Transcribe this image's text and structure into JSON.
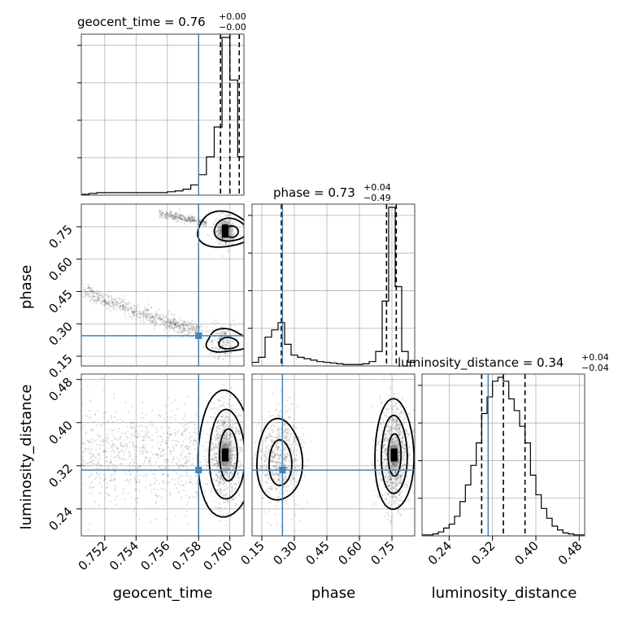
{
  "chart_data": {
    "type": "corner",
    "parameters": [
      {
        "name": "geocent_time",
        "label": "geocent_time",
        "range": [
          0.7505,
          0.7609
        ],
        "ticks": [
          "0.752",
          "0.754",
          "0.756",
          "0.758",
          "0.760"
        ],
        "tick_values": [
          0.752,
          0.754,
          0.756,
          0.758,
          0.76
        ],
        "truth": 0.758,
        "quantiles": [
          0.7594,
          0.76,
          0.7606
        ],
        "title": {
          "main": "geocent_time = 0.76",
          "sup": "+0.00",
          "sub": "−0.00"
        },
        "hist_edges": [
          0.7505,
          0.751,
          0.7515,
          0.752,
          0.7525,
          0.753,
          0.7535,
          0.754,
          0.7545,
          0.755,
          0.7555,
          0.756,
          0.7565,
          0.757,
          0.7575,
          0.758,
          0.7585,
          0.759,
          0.7595,
          0.76,
          0.7605,
          0.7609
        ],
        "hist_counts": [
          1,
          2,
          3,
          3,
          3,
          3,
          3,
          3,
          3,
          3,
          3,
          4,
          5,
          7,
          12,
          24,
          45,
          80,
          185,
          135,
          45
        ]
      },
      {
        "name": "phase",
        "label": "phase",
        "range": [
          0.105,
          0.855
        ],
        "ticks": [
          "0.15",
          "0.30",
          "0.45",
          "0.60",
          "0.75"
        ],
        "tick_values": [
          0.15,
          0.3,
          0.45,
          0.6,
          0.75
        ],
        "truth": 0.245,
        "quantiles": [
          0.24,
          0.725,
          0.77
        ],
        "title": {
          "main": "phase = 0.73",
          "sup": "+0.04",
          "sub": "−0.49"
        },
        "hist_edges": [
          0.105,
          0.135,
          0.165,
          0.195,
          0.225,
          0.255,
          0.285,
          0.315,
          0.345,
          0.375,
          0.405,
          0.435,
          0.465,
          0.495,
          0.525,
          0.555,
          0.585,
          0.615,
          0.645,
          0.675,
          0.705,
          0.735,
          0.765,
          0.795,
          0.825,
          0.855
        ],
        "hist_counts": [
          5,
          12,
          40,
          50,
          60,
          30,
          15,
          12,
          10,
          8,
          6,
          5,
          4,
          3,
          2,
          2,
          2,
          3,
          6,
          20,
          90,
          220,
          110,
          20,
          5
        ]
      },
      {
        "name": "luminosity_distance",
        "label": "luminosity_distance",
        "range": [
          0.19,
          0.49
        ],
        "ticks": [
          "0.24",
          "0.32",
          "0.40",
          "0.48"
        ],
        "tick_values": [
          0.24,
          0.32,
          0.4,
          0.48
        ],
        "truth": 0.312,
        "quantiles": [
          0.3,
          0.34,
          0.38
        ],
        "title": {
          "main": "luminosity_distance = 0.34",
          "sup": "+0.04",
          "sub": "−0.04"
        },
        "hist_edges": [
          0.19,
          0.2,
          0.21,
          0.22,
          0.23,
          0.24,
          0.25,
          0.26,
          0.27,
          0.28,
          0.29,
          0.3,
          0.31,
          0.32,
          0.33,
          0.34,
          0.35,
          0.36,
          0.37,
          0.38,
          0.39,
          0.4,
          0.41,
          0.42,
          0.43,
          0.44,
          0.45,
          0.46,
          0.47,
          0.48,
          0.49
        ],
        "hist_counts": [
          1,
          1,
          2,
          4,
          8,
          12,
          20,
          35,
          52,
          72,
          95,
          125,
          142,
          158,
          162,
          158,
          140,
          128,
          112,
          95,
          62,
          42,
          28,
          18,
          10,
          6,
          3,
          2,
          1,
          1
        ]
      }
    ],
    "truth_color": "#4682b4"
  }
}
